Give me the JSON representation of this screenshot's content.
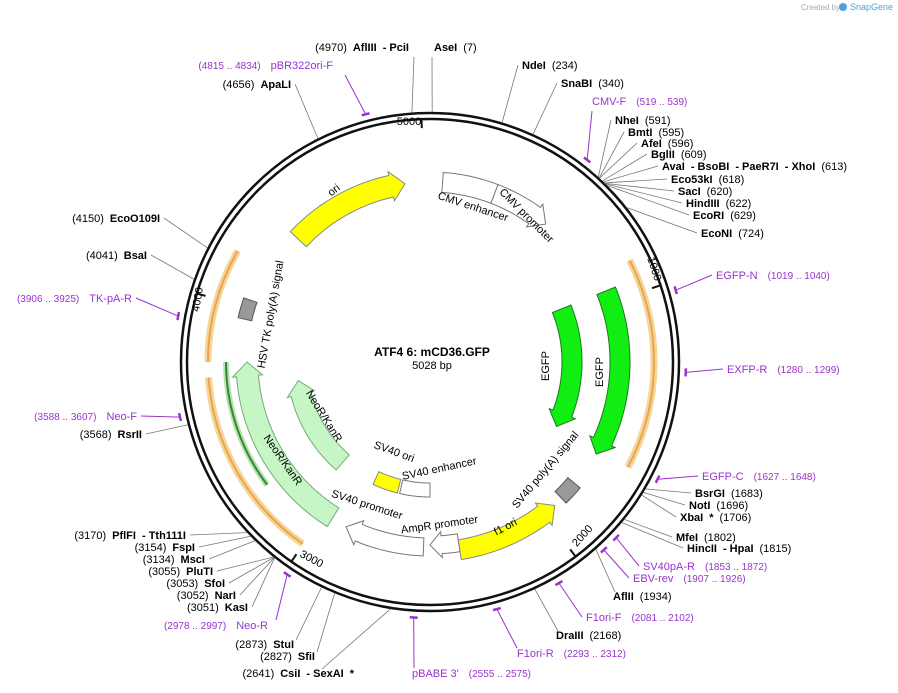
{
  "header": {
    "credit": "Created by",
    "brand": "SnapGene"
  },
  "map": {
    "name": "ATF4 6: mCD36.GFP",
    "length": "5028 bp",
    "ticks": [
      "1000",
      "2000",
      "3000",
      "4000",
      "5000"
    ]
  },
  "enzymes": [
    {
      "names": [
        "AflIII",
        "- PciI"
      ],
      "position": "(4970)"
    },
    {
      "names": [
        "AseI"
      ],
      "position": "(7)"
    },
    {
      "names": [
        "NdeI"
      ],
      "position": "(234)"
    },
    {
      "names": [
        "SnaBI"
      ],
      "position": "(340)"
    },
    {
      "names": [
        "NheI"
      ],
      "position": "(591)"
    },
    {
      "names": [
        "BmtI"
      ],
      "position": "(595)"
    },
    {
      "names": [
        "AfeI"
      ],
      "position": "(596)"
    },
    {
      "names": [
        "BglII"
      ],
      "position": "(609)"
    },
    {
      "names": [
        "AvaI",
        "- BsoBI",
        "- PaeR7I",
        "- XhoI"
      ],
      "position": "(613)"
    },
    {
      "names": [
        "Eco53kI"
      ],
      "position": "(618)"
    },
    {
      "names": [
        "SacI"
      ],
      "position": "(620)"
    },
    {
      "names": [
        "HindIII"
      ],
      "position": "(622)"
    },
    {
      "names": [
        "EcoRI"
      ],
      "position": "(629)"
    },
    {
      "names": [
        "EcoNI"
      ],
      "position": "(724)"
    },
    {
      "names": [
        "BsrGI"
      ],
      "position": "(1683)"
    },
    {
      "names": [
        "NotI"
      ],
      "position": "(1696)"
    },
    {
      "names": [
        "XbaI",
        "*"
      ],
      "position": "(1706)"
    },
    {
      "names": [
        "MfeI"
      ],
      "position": "(1802)"
    },
    {
      "names": [
        "HincII",
        "- HpaI"
      ],
      "position": "(1815)"
    },
    {
      "names": [
        "AflII"
      ],
      "position": "(1934)"
    },
    {
      "names": [
        "DraIII"
      ],
      "position": "(2168)"
    },
    {
      "names": [
        "CsiI",
        "- SexAI",
        "*"
      ],
      "position": "(2641)"
    },
    {
      "names": [
        "SfiI"
      ],
      "position": "(2827)"
    },
    {
      "names": [
        "StuI"
      ],
      "position": "(2873)"
    },
    {
      "names": [
        "KasI"
      ],
      "position": "(3051)"
    },
    {
      "names": [
        "NarI"
      ],
      "position": "(3052)"
    },
    {
      "names": [
        "SfoI"
      ],
      "position": "(3053)"
    },
    {
      "names": [
        "PluTI"
      ],
      "position": "(3055)"
    },
    {
      "names": [
        "MscI"
      ],
      "position": "(3134)"
    },
    {
      "names": [
        "FspI"
      ],
      "position": "(3154)"
    },
    {
      "names": [
        "PflFI",
        "- Tth111I"
      ],
      "position": "(3170)"
    },
    {
      "names": [
        "RsrII"
      ],
      "position": "(3568)"
    },
    {
      "names": [
        "BsaI"
      ],
      "position": "(4041)"
    },
    {
      "names": [
        "EcoO109I"
      ],
      "position": "(4150)"
    },
    {
      "names": [
        "ApaLI"
      ],
      "position": "(4656)"
    }
  ],
  "primers": [
    {
      "name": "pBR322ori-F",
      "range": "(4815 .. 4834)"
    },
    {
      "name": "CMV-F",
      "range": "(519 .. 539)"
    },
    {
      "name": "EGFP-N",
      "range": "(1019 .. 1040)"
    },
    {
      "name": "EXFP-R",
      "range": "(1280 .. 1299)"
    },
    {
      "name": "EGFP-C",
      "range": "(1627 .. 1648)"
    },
    {
      "name": "SV40pA-R",
      "range": "(1853 .. 1872)"
    },
    {
      "name": "EBV-rev",
      "range": "(1907 .. 1926)"
    },
    {
      "name": "F1ori-F",
      "range": "(2081 .. 2102)"
    },
    {
      "name": "F1ori-R",
      "range": "(2293 .. 2312)"
    },
    {
      "name": "pBABE 3'",
      "range": "(2555 .. 2575)"
    },
    {
      "name": "Neo-R",
      "range": "(2978 .. 2997)"
    },
    {
      "name": "Neo-F",
      "range": "(3588 .. 3607)"
    },
    {
      "name": "TK-pA-R",
      "range": "(3906 .. 3925)"
    }
  ],
  "features": [
    {
      "label": "ori"
    },
    {
      "label": "CMV enhancer"
    },
    {
      "label": "CMV promoter"
    },
    {
      "label": "EGFP"
    },
    {
      "label": "EGFP"
    },
    {
      "label": "SV40 poly(A) signal"
    },
    {
      "label": "f1 ori"
    },
    {
      "label": "AmpR promoter"
    },
    {
      "label": "SV40 promoter"
    },
    {
      "label": "SV40 ori"
    },
    {
      "label": "SV40 enhancer"
    },
    {
      "label": "NeoR/KanR"
    },
    {
      "label": "NeoR/KanR"
    },
    {
      "label": "HSV TK poly(A) signal"
    }
  ]
}
